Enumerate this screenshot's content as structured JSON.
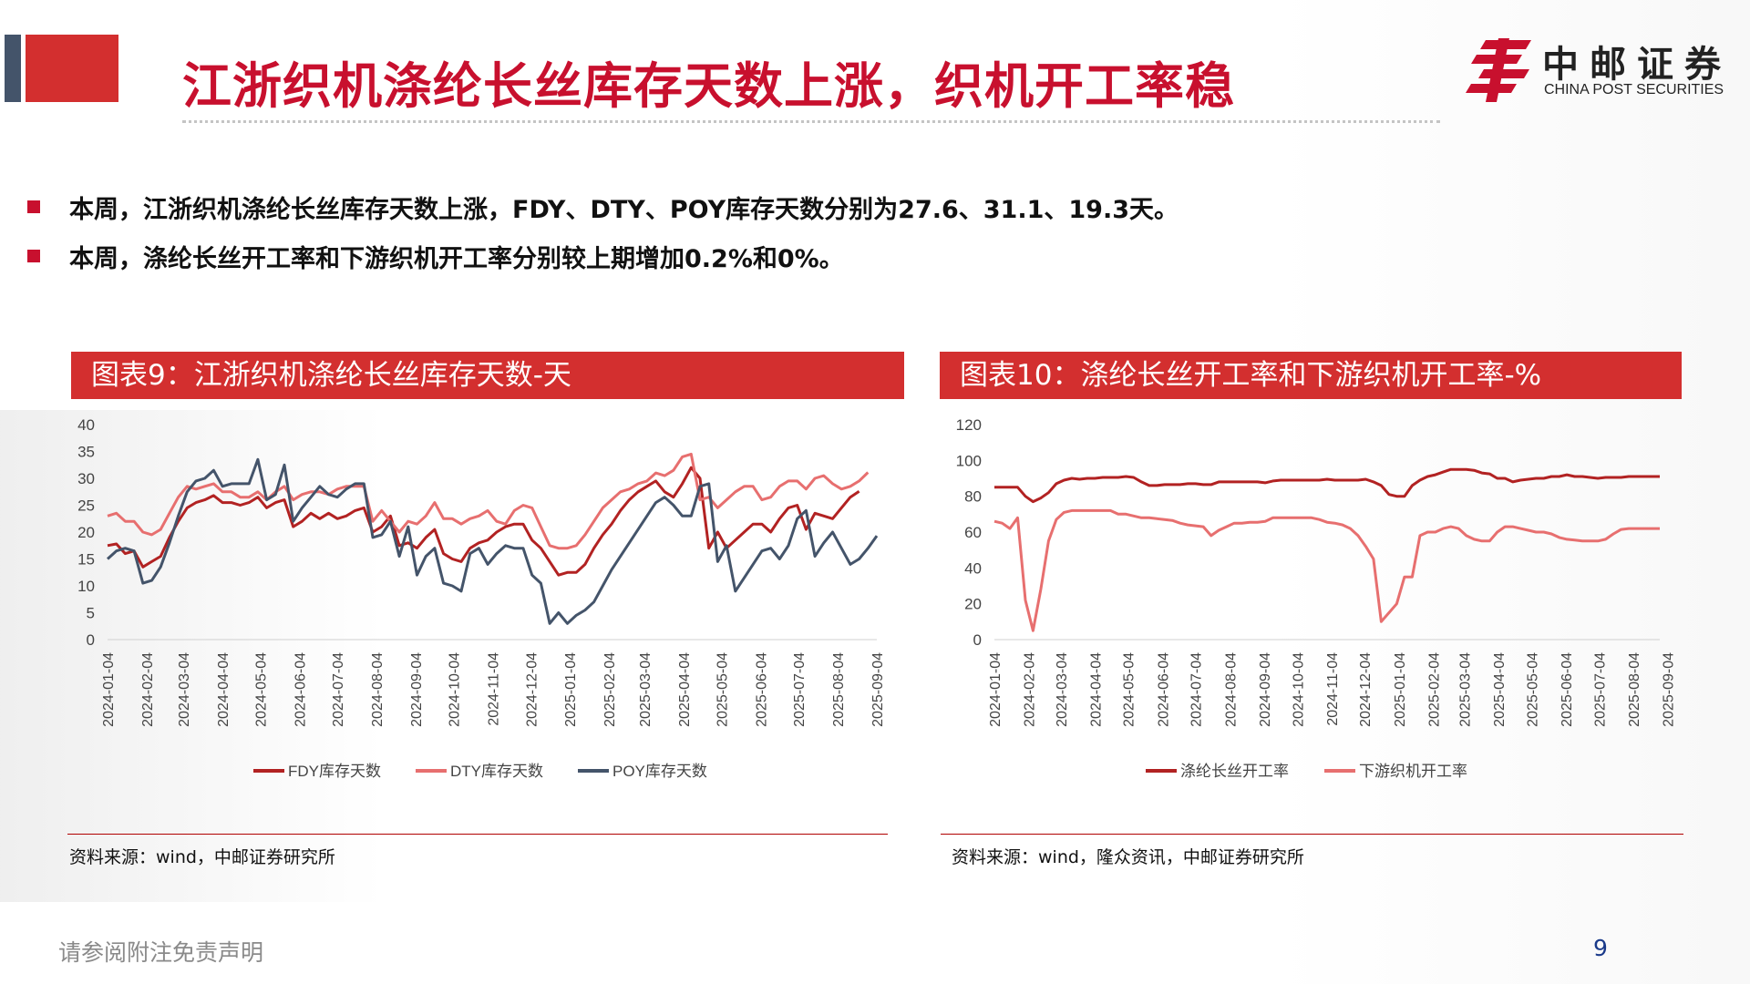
{
  "title": "江浙织机涤纶长丝库存天数上涨，织机开工率稳",
  "logo": {
    "cn": "中邮证券",
    "en": "CHINA POST SECURITIES",
    "icon": "china-post-logo-icon"
  },
  "bullets": [
    "本周，江浙织机涤纶长丝库存天数上涨，FDY、DTY、POY库存天数分别为27.6、31.1、19.3天。",
    "本周，涤纶长丝开工率和下游织机开工率分别较上期增加0.2%和0%。"
  ],
  "colors": {
    "brand_red": "#c8102e",
    "header_red": "#d32f2f",
    "series_dark_red": "#b22222",
    "series_light_red": "#e76f6f",
    "series_slate": "#44546a"
  },
  "chart_data": [
    {
      "type": "line",
      "title": "图表9：江浙织机涤纶长丝库存天数-天",
      "source": "资料来源：wind，中邮证券研究所",
      "x_start": "2024-01-04",
      "x_step_weeks": 1,
      "x_ticks": [
        "2024-01-04",
        "2024-02-04",
        "2024-03-04",
        "2024-04-04",
        "2024-05-04",
        "2024-06-04",
        "2024-07-04",
        "2024-08-04",
        "2024-09-04",
        "2024-10-04",
        "2024-11-04",
        "2024-12-04",
        "2025-01-04",
        "2025-02-04",
        "2025-03-04",
        "2025-04-04",
        "2025-05-04",
        "2025-06-04",
        "2025-07-04",
        "2025-08-04",
        "2025-09-04"
      ],
      "ylim": [
        0,
        40
      ],
      "y_ticks": [
        0,
        5,
        10,
        15,
        20,
        25,
        30,
        35,
        40
      ],
      "legend_position": "bottom",
      "series": [
        {
          "name": "FDY库存天数",
          "color": "#b22222",
          "values": [
            17.5,
            17.8,
            16,
            16.5,
            13.5,
            14.5,
            15.5,
            19,
            22,
            24.5,
            25.5,
            26,
            26.8,
            25.5,
            25.5,
            25,
            25.5,
            26.5,
            24.5,
            25.5,
            26,
            21,
            22,
            23.5,
            22.5,
            23.5,
            22.5,
            23,
            24,
            24.5,
            20,
            21,
            23,
            17.5,
            18,
            17,
            19,
            20.5,
            16,
            15,
            14.5,
            17,
            18,
            18.5,
            20,
            21,
            21.5,
            21.5,
            18.5,
            17,
            14.5,
            12,
            12.5,
            12.5,
            14,
            17,
            19.5,
            21.5,
            24,
            26,
            27.5,
            28.5,
            29.5,
            27.5,
            26.5,
            29,
            32,
            30,
            17,
            20,
            17,
            18.5,
            20,
            21.5,
            21.5,
            20,
            22.5,
            24.5,
            25,
            20.5,
            23.5,
            23,
            22.5,
            24.5,
            26.5,
            27.6
          ]
        },
        {
          "name": "DTY库存天数",
          "color": "#e76f6f",
          "values": [
            23,
            23.5,
            22,
            22,
            20,
            19.5,
            20.5,
            23.5,
            26.5,
            28.5,
            28,
            28.5,
            29,
            27.5,
            27.5,
            26.5,
            26.5,
            27.5,
            26,
            27.5,
            28.5,
            26,
            27,
            27.5,
            27.5,
            27,
            28,
            28.5,
            28.5,
            28.5,
            22,
            24,
            22,
            20,
            22,
            21.5,
            23,
            25.5,
            22.5,
            22.5,
            21.5,
            22.5,
            23,
            24,
            22,
            21.5,
            24,
            25,
            24.5,
            21,
            17.5,
            17,
            17,
            17.5,
            19.5,
            22,
            24.5,
            26,
            27.5,
            28,
            29,
            29.5,
            31,
            30.5,
            31.5,
            34,
            34.5,
            26,
            26.5,
            24.5,
            26,
            27.5,
            28.5,
            28.5,
            26,
            26.5,
            28.5,
            29.5,
            29.5,
            28,
            30,
            30.5,
            29,
            28,
            28.5,
            29.5,
            31.1
          ]
        },
        {
          "name": "POY库存天数",
          "color": "#44546a",
          "values": [
            15,
            16.5,
            17,
            16.5,
            10.5,
            11,
            13.5,
            18,
            23,
            27.5,
            29.5,
            30,
            31.5,
            28.5,
            29,
            29,
            29,
            33.5,
            26,
            27,
            32.5,
            22,
            24.5,
            26.5,
            28.5,
            27,
            26.5,
            28,
            29,
            29,
            19,
            19.5,
            22,
            15.5,
            21,
            12,
            15.5,
            17,
            10.5,
            10,
            9,
            16,
            17,
            14,
            16,
            17.5,
            17,
            17,
            12,
            10.5,
            3,
            5,
            3,
            4.5,
            5.5,
            7,
            10,
            13,
            15.5,
            18,
            20.5,
            23,
            25.5,
            26.5,
            25,
            23,
            23,
            28.5,
            29,
            14.5,
            17.5,
            9,
            11.5,
            14,
            16.5,
            17,
            15,
            17.5,
            22.5,
            24,
            15.5,
            18,
            20,
            17,
            14,
            15,
            17,
            19.3
          ]
        }
      ]
    },
    {
      "type": "line",
      "title": "图表10：涤纶长丝开工率和下游织机开工率-%",
      "source": "资料来源：wind，隆众资讯，中邮证券研究所",
      "x_start": "2024-01-04",
      "x_step_weeks": 1,
      "x_ticks": [
        "2024-01-04",
        "2024-02-04",
        "2024-03-04",
        "2024-04-04",
        "2024-05-04",
        "2024-06-04",
        "2024-07-04",
        "2024-08-04",
        "2024-09-04",
        "2024-10-04",
        "2024-11-04",
        "2024-12-04",
        "2025-01-04",
        "2025-02-04",
        "2025-03-04",
        "2025-04-04",
        "2025-05-04",
        "2025-06-04",
        "2025-07-04",
        "2025-08-04",
        "2025-09-04"
      ],
      "ylim": [
        0,
        120
      ],
      "y_ticks": [
        0,
        20,
        40,
        60,
        80,
        100,
        120
      ],
      "legend_position": "bottom",
      "series": [
        {
          "name": "涤纶长丝开工率",
          "color": "#b22222",
          "values": [
            85,
            85,
            85,
            85,
            80,
            77,
            79,
            82,
            87,
            89,
            90,
            89.5,
            90,
            90,
            90.5,
            90.5,
            90.5,
            91,
            90.5,
            88,
            86,
            86,
            86.5,
            86.5,
            86.5,
            87,
            87,
            86.5,
            86.5,
            88,
            88,
            88,
            88,
            88,
            88,
            87.5,
            88.5,
            89,
            89,
            89,
            89,
            89,
            89,
            89.5,
            89,
            89,
            89,
            89,
            89.5,
            88,
            86,
            81,
            80,
            80,
            86,
            89,
            91,
            92,
            93.5,
            95,
            95,
            95,
            94.5,
            93,
            92.5,
            90,
            90,
            88,
            89,
            89.5,
            90,
            90,
            91,
            91,
            92,
            91,
            91,
            90.5,
            90,
            90.5,
            90.5,
            90.5,
            91,
            91,
            91,
            91,
            91
          ]
        },
        {
          "name": "下游织机开工率",
          "color": "#e76f6f",
          "values": [
            66,
            65,
            62,
            68,
            22,
            5,
            28,
            55,
            67,
            71,
            72,
            72,
            72,
            72,
            72,
            72,
            70,
            70,
            69,
            68,
            68,
            67.5,
            67,
            66.5,
            65,
            64,
            63.5,
            63,
            58,
            61,
            63,
            65,
            65,
            65.5,
            65.5,
            66,
            68,
            68,
            68,
            68,
            68,
            68,
            67,
            65.5,
            65,
            64,
            62,
            58,
            52,
            45,
            10,
            15,
            20,
            35,
            35,
            58,
            60,
            60,
            62,
            63,
            62,
            58,
            56,
            55,
            55,
            60,
            63,
            63,
            62,
            61,
            60,
            60,
            59,
            57,
            56,
            55.5,
            55,
            55,
            55,
            56,
            59,
            61.5,
            62,
            62,
            62,
            62,
            62
          ]
        }
      ]
    }
  ],
  "footer": "请参阅附注免责声明",
  "page_number": "9"
}
